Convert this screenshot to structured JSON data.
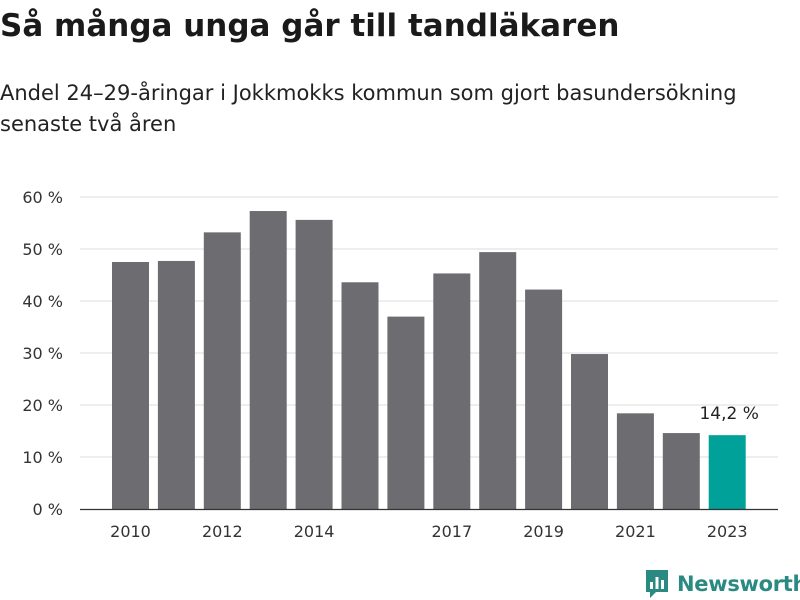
{
  "header": {
    "title": "Så många unga går till tandläkaren",
    "subtitle": "Andel 24–29-åringar i Jokkmokks kommun som gjort basundersökning senaste två åren"
  },
  "brand": {
    "name": "Newsworthy",
    "icon": "bar-chart-speech-bubble-icon",
    "color": "#2a8a82"
  },
  "chart_data": {
    "type": "bar",
    "categories": [
      "2010",
      "2011",
      "2012",
      "2013",
      "2014",
      "2015",
      "2016",
      "2017",
      "2018",
      "2019",
      "2020",
      "2021",
      "2022",
      "2023"
    ],
    "values": [
      47.5,
      47.7,
      53.2,
      57.3,
      55.6,
      43.6,
      37.0,
      45.3,
      49.4,
      42.2,
      29.8,
      18.4,
      14.6,
      14.2
    ],
    "x_tick_labels": [
      "2010",
      "",
      "2012",
      "",
      "2014",
      "",
      "",
      "2017",
      "",
      "2019",
      "",
      "2021",
      "",
      "2023"
    ],
    "y_ticks": [
      0,
      10,
      20,
      30,
      40,
      50,
      60
    ],
    "y_tick_labels": [
      "0 %",
      "10 %",
      "20 %",
      "30 %",
      "40 %",
      "50 %",
      "60 %"
    ],
    "ylim": [
      0,
      60
    ],
    "highlight_index": 13,
    "highlight_label": "14,2 %",
    "colors": {
      "bar": "#6d6c71",
      "highlight": "#00a199",
      "grid": "#dcdcdc",
      "axis": "#333333"
    },
    "grid": true,
    "legend": false,
    "xlabel": "",
    "ylabel": ""
  }
}
